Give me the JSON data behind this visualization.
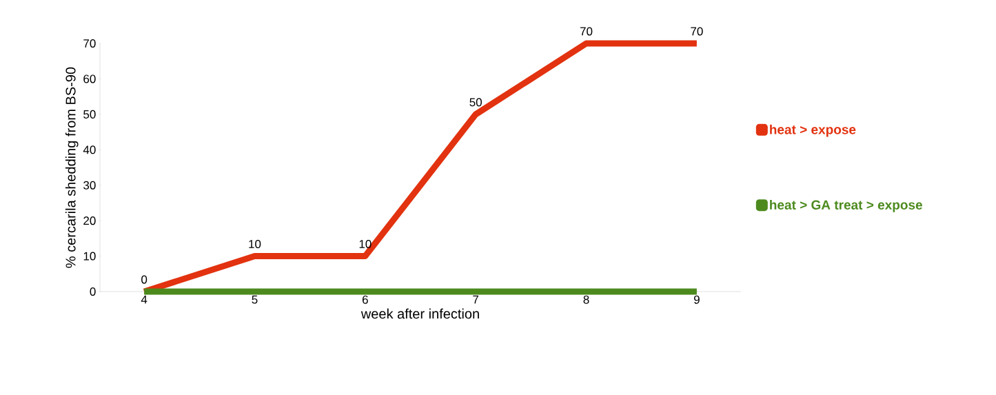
{
  "chart_data": {
    "type": "line",
    "xlabel": "week after infection",
    "ylabel": "% cercarila shedding from BS-90",
    "categories": [
      "4",
      "5",
      "6",
      "7",
      "8",
      "9"
    ],
    "series": [
      {
        "name": "heat > expose",
        "color": "#e2320f",
        "values": [
          0,
          10,
          10,
          50,
          70,
          70
        ],
        "value_labels": [
          "0",
          "10",
          "10",
          "50",
          "70",
          "70"
        ]
      },
      {
        "name": "heat > GA treat > expose",
        "color": "#4c8a1e",
        "values": [
          0,
          0,
          0,
          0,
          0,
          0
        ]
      }
    ],
    "ylim": [
      0,
      70
    ],
    "yticks": [
      0,
      10,
      20,
      30,
      40,
      50,
      60,
      70
    ],
    "legend": "right",
    "grid": false
  }
}
